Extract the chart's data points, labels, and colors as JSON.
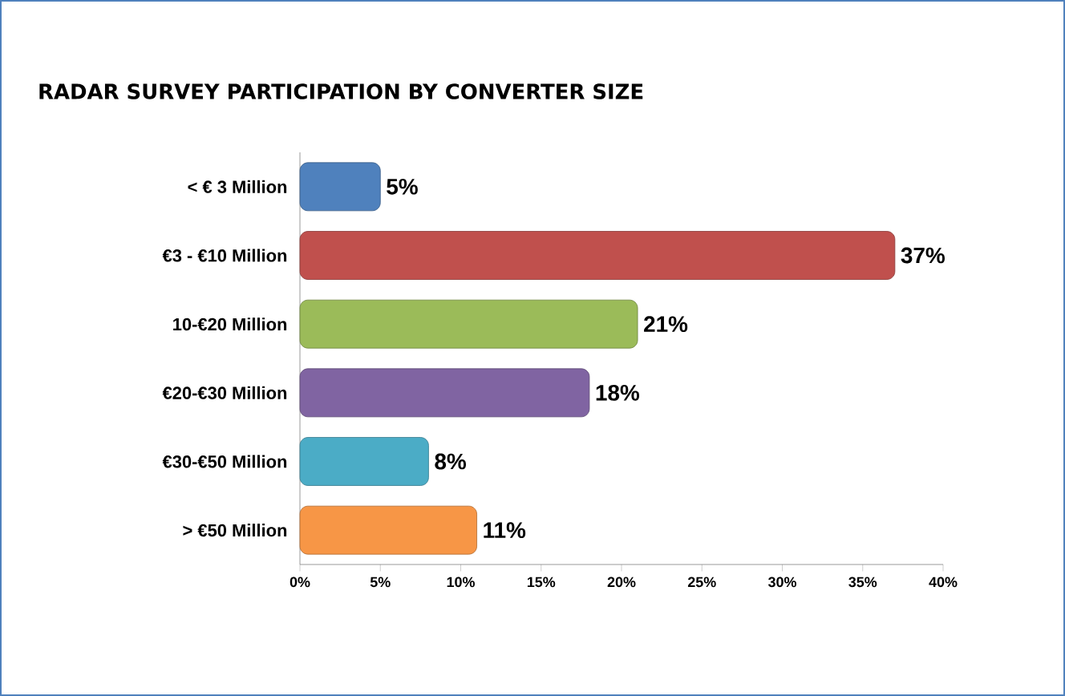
{
  "chart_data": {
    "type": "bar",
    "orientation": "horizontal",
    "title": "RADAR SURVEY PARTICIPATION BY CONVERTER SIZE",
    "categories": [
      "< € 3 Million",
      "€3 - €10 Million",
      "10-€20 Million",
      "€20-€30 Million",
      "€30-€50 Million",
      "> €50 Million"
    ],
    "values": [
      5,
      37,
      21,
      18,
      8,
      11
    ],
    "value_labels": [
      "5%",
      "37%",
      "21%",
      "18%",
      "8%",
      "11%"
    ],
    "colors": [
      "#4f81bd",
      "#c0504d",
      "#9bbb59",
      "#8064a2",
      "#4bacc6",
      "#f79646"
    ],
    "xlim": [
      0,
      40
    ],
    "xticks": [
      {
        "value": 0,
        "label": "0%"
      },
      {
        "value": 5,
        "label": "5%"
      },
      {
        "value": 10,
        "label": "10%"
      },
      {
        "value": 15,
        "label": "15%"
      },
      {
        "value": 20,
        "label": "20%"
      },
      {
        "value": 25,
        "label": "25%"
      },
      {
        "value": 30,
        "label": "30%"
      },
      {
        "value": 35,
        "label": "35%"
      },
      {
        "value": 40,
        "label": "40%"
      }
    ],
    "grid": false
  }
}
